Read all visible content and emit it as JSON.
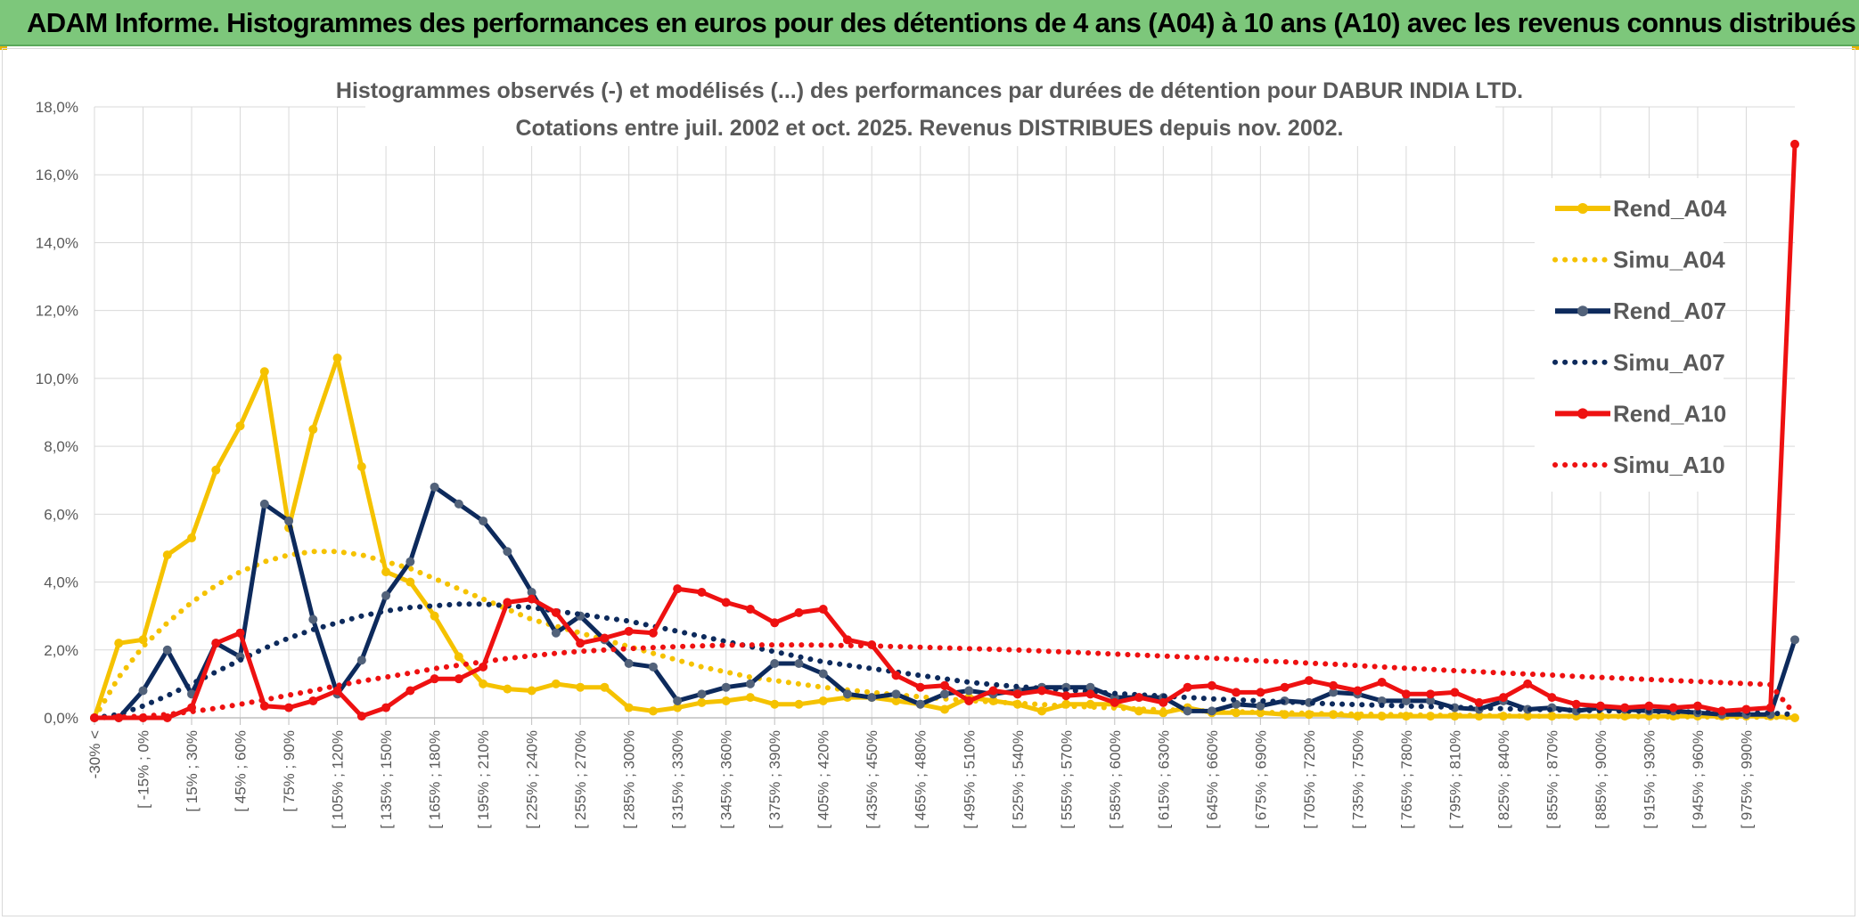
{
  "banner": {
    "title": "ADAM Informe. Histogrammes des performances en euros pour des détentions de 4 ans (A04) à 10 ans (A10) avec les revenus connus distribués"
  },
  "colors": {
    "banner_bg": "#7dc77b",
    "a04": "#f5c200",
    "a07": "#0d2a5c",
    "a07_marker": "#52627a",
    "a10": "#ee1111",
    "grid": "#d9d9d9"
  },
  "chart_data": {
    "type": "line",
    "title": "Histogrammes observés (-) et modélisés (...) des performances par durées de détention pour DABUR INDIA LTD.",
    "subtitle": "Cotations entre juil. 2002 et oct. 2025. Revenus DISTRIBUES depuis nov. 2002.",
    "y_ticks": [
      "0,0%",
      "2,0%",
      "4,0%",
      "6,0%",
      "8,0%",
      "10,0%",
      "12,0%",
      "14,0%",
      "16,0%",
      "18,0%"
    ],
    "ylim": [
      0,
      18
    ],
    "grid": true,
    "legend_position": "right",
    "x_tick_labels": [
      "-30% <",
      "[ -15% ; 0% ",
      "[ 15% ; 30% ",
      "[ 45% ; 60% ",
      "[ 75% ; 90% ",
      "[ 105% ; 120% ",
      "[ 135% ; 150% ",
      "[ 165% ; 180% ",
      "[ 195% ; 210% ",
      "[ 225% ; 240% ",
      "[ 255% ; 270% ",
      "[ 285% ; 300% ",
      "[ 315% ; 330% ",
      "[ 345% ; 360% ",
      "[ 375% ; 390% ",
      "[ 405% ; 420% ",
      "[ 435% ; 450% ",
      "[ 465% ; 480% ",
      "[ 495% ; 510% ",
      "[ 525% ; 540% ",
      "[ 555% ; 570% ",
      "[ 585% ; 600% ",
      "[ 615% ; 630% ",
      "[ 645% ; 660% ",
      "[ 675% ; 690% ",
      "[ 705% ; 720% ",
      "[ 735% ; 750% ",
      "[ 765% ; 780% ",
      "[ 795% ; 810% ",
      "[ 825% ; 840% ",
      "[ 855% ; 870% ",
      "[ 885% ; 900% ",
      "[ 915% ; 930% ",
      "[ 945% ; 960% ",
      "[ 975% ; 990% "
    ],
    "n_categories": 71,
    "series": [
      {
        "name": "Rend_A04",
        "style": "solid",
        "color": "#f5c200",
        "values": [
          0.0,
          2.2,
          2.3,
          4.8,
          5.3,
          7.3,
          8.6,
          10.2,
          5.6,
          8.5,
          10.6,
          7.4,
          4.3,
          4.0,
          3.0,
          1.8,
          1.0,
          0.85,
          0.8,
          1.0,
          0.9,
          0.9,
          0.3,
          0.2,
          0.3,
          0.45,
          0.5,
          0.6,
          0.4,
          0.4,
          0.5,
          0.6,
          0.6,
          0.5,
          0.4,
          0.25,
          0.6,
          0.5,
          0.4,
          0.2,
          0.4,
          0.4,
          0.4,
          0.2,
          0.15,
          0.3,
          0.15,
          0.15,
          0.15,
          0.1,
          0.1,
          0.1,
          0.05,
          0.05,
          0.05,
          0.05,
          0.05,
          0.05,
          0.05,
          0.05,
          0.05,
          0.05,
          0.05,
          0.05,
          0.05,
          0.05,
          0.05,
          0.05,
          0.05,
          0.05,
          0.0
        ]
      },
      {
        "name": "Simu_A04",
        "style": "dotted",
        "color": "#f5c200",
        "values": [
          0.0,
          1.2,
          2.1,
          2.8,
          3.4,
          3.9,
          4.3,
          4.6,
          4.8,
          4.9,
          4.9,
          4.8,
          4.6,
          4.4,
          4.1,
          3.8,
          3.5,
          3.2,
          2.9,
          2.7,
          2.5,
          2.3,
          2.1,
          1.9,
          1.7,
          1.5,
          1.35,
          1.2,
          1.1,
          1.0,
          0.9,
          0.82,
          0.75,
          0.68,
          0.62,
          0.56,
          0.51,
          0.47,
          0.43,
          0.39,
          0.35,
          0.32,
          0.29,
          0.26,
          0.24,
          0.22,
          0.2,
          0.18,
          0.16,
          0.15,
          0.13,
          0.12,
          0.11,
          0.1,
          0.09,
          0.08,
          0.07,
          0.07,
          0.06,
          0.05,
          0.05,
          0.04,
          0.04,
          0.04,
          0.03,
          0.03,
          0.03,
          0.02,
          0.02,
          0.02,
          0.0
        ]
      },
      {
        "name": "Rend_A07",
        "style": "solid",
        "color": "#0d2a5c",
        "values": [
          0.0,
          0.0,
          0.8,
          2.0,
          0.7,
          2.2,
          1.8,
          6.3,
          5.8,
          2.9,
          0.7,
          1.7,
          3.6,
          4.6,
          6.8,
          6.3,
          5.8,
          4.9,
          3.7,
          2.5,
          3.0,
          2.3,
          1.6,
          1.5,
          0.5,
          0.7,
          0.9,
          1.0,
          1.6,
          1.6,
          1.3,
          0.7,
          0.6,
          0.7,
          0.4,
          0.7,
          0.8,
          0.7,
          0.8,
          0.9,
          0.9,
          0.9,
          0.6,
          0.6,
          0.6,
          0.2,
          0.2,
          0.4,
          0.35,
          0.5,
          0.45,
          0.75,
          0.7,
          0.5,
          0.5,
          0.5,
          0.3,
          0.25,
          0.5,
          0.25,
          0.3,
          0.2,
          0.3,
          0.25,
          0.2,
          0.2,
          0.15,
          0.1,
          0.1,
          0.1,
          2.3
        ]
      },
      {
        "name": "Simu_A07",
        "style": "dotted",
        "color": "#0d2a5c",
        "values": [
          0.0,
          0.1,
          0.35,
          0.65,
          1.0,
          1.35,
          1.7,
          2.05,
          2.35,
          2.6,
          2.8,
          3.0,
          3.15,
          3.25,
          3.3,
          3.35,
          3.35,
          3.3,
          3.25,
          3.15,
          3.05,
          2.95,
          2.85,
          2.7,
          2.55,
          2.4,
          2.25,
          2.1,
          1.95,
          1.8,
          1.65,
          1.55,
          1.45,
          1.35,
          1.25,
          1.15,
          1.05,
          0.98,
          0.92,
          0.87,
          0.82,
          0.77,
          0.72,
          0.68,
          0.64,
          0.6,
          0.56,
          0.53,
          0.5,
          0.47,
          0.44,
          0.41,
          0.39,
          0.37,
          0.35,
          0.33,
          0.31,
          0.29,
          0.27,
          0.25,
          0.24,
          0.22,
          0.21,
          0.2,
          0.19,
          0.18,
          0.17,
          0.16,
          0.15,
          0.14,
          0.1
        ]
      },
      {
        "name": "Rend_A10",
        "style": "solid",
        "color": "#ee1111",
        "values": [
          0.0,
          0.0,
          0.0,
          0.0,
          0.3,
          2.2,
          2.5,
          0.35,
          0.3,
          0.5,
          0.8,
          0.05,
          0.3,
          0.8,
          1.15,
          1.15,
          1.5,
          3.4,
          3.5,
          3.1,
          2.2,
          2.35,
          2.55,
          2.5,
          3.8,
          3.7,
          3.4,
          3.2,
          2.8,
          3.1,
          3.2,
          2.3,
          2.15,
          1.25,
          0.9,
          0.95,
          0.5,
          0.8,
          0.7,
          0.8,
          0.65,
          0.7,
          0.45,
          0.6,
          0.45,
          0.9,
          0.95,
          0.75,
          0.75,
          0.9,
          1.1,
          0.95,
          0.8,
          1.05,
          0.7,
          0.7,
          0.75,
          0.45,
          0.6,
          1.0,
          0.6,
          0.4,
          0.35,
          0.3,
          0.35,
          0.3,
          0.35,
          0.2,
          0.25,
          0.3,
          16.9
        ]
      },
      {
        "name": "Simu_A10",
        "style": "dotted",
        "color": "#ee1111",
        "values": [
          0.0,
          0.02,
          0.05,
          0.1,
          0.18,
          0.28,
          0.4,
          0.53,
          0.67,
          0.8,
          0.95,
          1.08,
          1.2,
          1.32,
          1.45,
          1.55,
          1.65,
          1.75,
          1.83,
          1.9,
          1.96,
          2.0,
          2.04,
          2.07,
          2.1,
          2.12,
          2.14,
          2.15,
          2.15,
          2.15,
          2.14,
          2.13,
          2.12,
          2.1,
          2.08,
          2.06,
          2.04,
          2.02,
          2.0,
          1.97,
          1.94,
          1.91,
          1.88,
          1.85,
          1.82,
          1.79,
          1.76,
          1.72,
          1.68,
          1.65,
          1.61,
          1.58,
          1.54,
          1.5,
          1.46,
          1.43,
          1.39,
          1.36,
          1.32,
          1.29,
          1.26,
          1.22,
          1.19,
          1.16,
          1.13,
          1.1,
          1.07,
          1.04,
          1.01,
          0.98,
          0.1
        ]
      }
    ]
  }
}
